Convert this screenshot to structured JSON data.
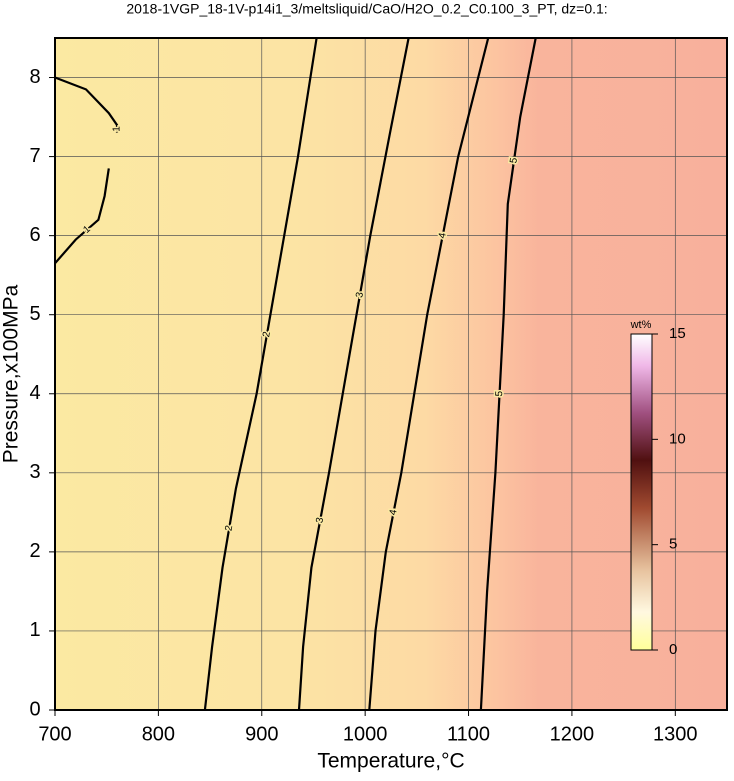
{
  "chart_data": {
    "type": "contour",
    "title": "2018-1VGP_18-1V-p14i1_3/meltsliquid/CaO/H2O_0.2_C0.100_3_PT, dz=0.1:",
    "x_label": "Temperature,°C",
    "y_label": "Pressure,x100MPa",
    "xlim": [
      700,
      1350
    ],
    "ylim": [
      0,
      8.5
    ],
    "xticks": [
      700,
      800,
      900,
      1000,
      1100,
      1200,
      1300
    ],
    "yticks": [
      0,
      1,
      2,
      3,
      4,
      5,
      6,
      7,
      8
    ],
    "grid": true,
    "series": [
      {
        "name": "1",
        "color": "#000000",
        "x": [
          700,
          730,
          752,
          760,
          760,
          null,
          700,
          720,
          742,
          748,
          752
        ],
        "y": [
          8,
          7.85,
          7.55,
          7.4,
          7.3,
          null,
          5.65,
          5.95,
          6.2,
          6.5,
          6.85
        ]
      },
      {
        "name": "2",
        "color": "#000000",
        "x": [
          845,
          852,
          862,
          875,
          895,
          915,
          935,
          953
        ],
        "y": [
          0,
          0.8,
          1.8,
          2.8,
          4.0,
          5.5,
          7.0,
          8.5
        ]
      },
      {
        "name": "3",
        "color": "#000000",
        "x": [
          936,
          940,
          948,
          965,
          985,
          1005,
          1024,
          1042
        ],
        "y": [
          0,
          0.8,
          1.8,
          3.0,
          4.5,
          6.0,
          7.3,
          8.5
        ]
      },
      {
        "name": "4",
        "color": "#000000",
        "x": [
          1004,
          1010,
          1020,
          1035,
          1060,
          1090,
          1119
        ],
        "y": [
          0,
          1.0,
          2.0,
          3.0,
          5.0,
          7.0,
          8.5
        ]
      },
      {
        "name": "5",
        "color": "#000000",
        "x": [
          1112,
          1118,
          1126,
          1134,
          1138,
          1150,
          1165
        ],
        "y": [
          0,
          1.5,
          3.0,
          5.0,
          6.4,
          7.5,
          8.5
        ]
      }
    ],
    "colorbar": {
      "label": "wt%",
      "lim": [
        0,
        15
      ],
      "ticks": [
        0,
        5,
        10,
        15
      ]
    }
  }
}
